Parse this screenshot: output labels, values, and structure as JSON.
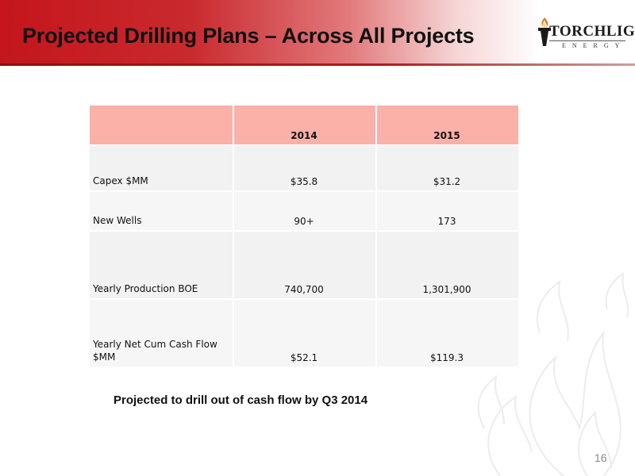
{
  "slide": {
    "title": "Projected Drilling Plans – Across All Projects",
    "note": "Projected to drill out of cash flow by Q3 2014",
    "page_number": "16"
  },
  "logo": {
    "text": "ORCHLIGHT",
    "initial": "T",
    "sub": "ENERGY",
    "icon": "torch-icon"
  },
  "table": {
    "headers": [
      "",
      "2014",
      "2015"
    ],
    "rows": [
      {
        "label": "Capex $MM",
        "y2014": "$35.8",
        "y2015": "$31.2"
      },
      {
        "label": "New Wells",
        "y2014": "90+",
        "y2015": "173"
      },
      {
        "label": "Yearly Production BOE",
        "y2014": "740,700",
        "y2015": "1,301,900"
      },
      {
        "label": "Yearly Net Cum Cash Flow $MM",
        "y2014": "$52.1",
        "y2015": "$119.3"
      }
    ]
  },
  "colors": {
    "header_red": "#c4151c",
    "table_header": "#fbb0a8",
    "row_fill": "#f2f2f2"
  }
}
